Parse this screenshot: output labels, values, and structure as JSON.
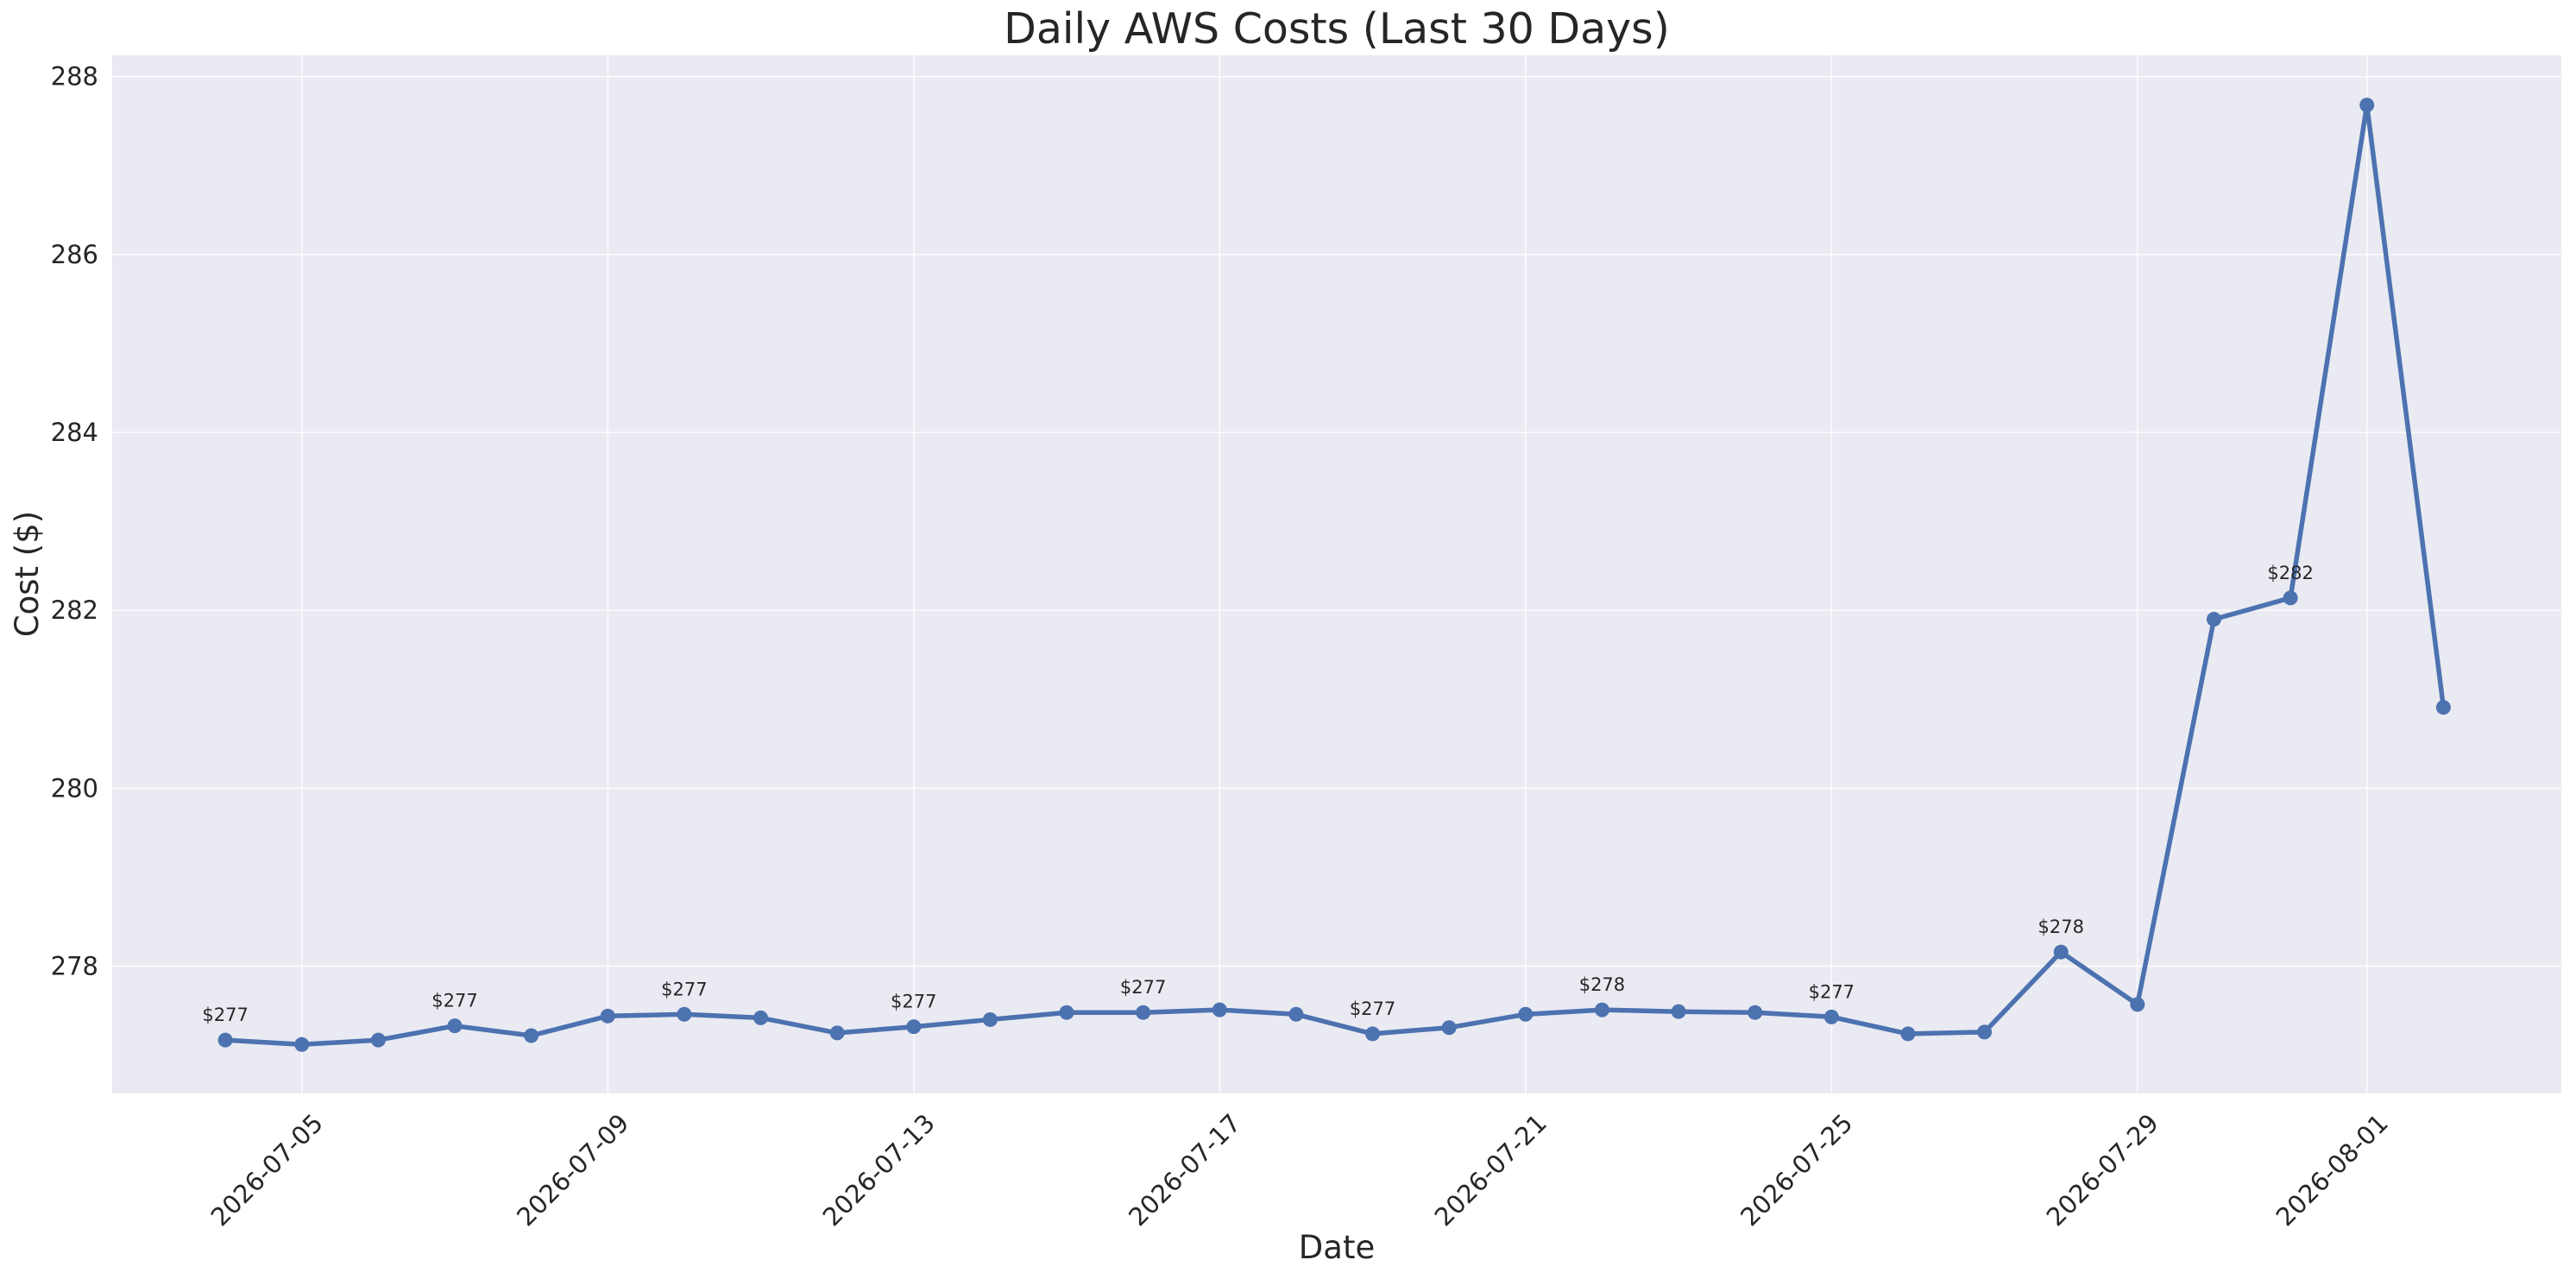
{
  "chart_data": {
    "type": "line",
    "title": "Daily AWS Costs (Last 30 Days)",
    "xlabel": "Date",
    "ylabel": "Cost ($)",
    "x": [
      "2026-07-04",
      "2026-07-05",
      "2026-07-06",
      "2026-07-07",
      "2026-07-08",
      "2026-07-09",
      "2026-07-10",
      "2026-07-11",
      "2026-07-12",
      "2026-07-13",
      "2026-07-14",
      "2026-07-15",
      "2026-07-16",
      "2026-07-17",
      "2026-07-18",
      "2026-07-19",
      "2026-07-20",
      "2026-07-21",
      "2026-07-22",
      "2026-07-23",
      "2026-07-24",
      "2026-07-25",
      "2026-07-26",
      "2026-07-27",
      "2026-07-28",
      "2026-07-29",
      "2026-07-30",
      "2026-07-31",
      "2026-08-01",
      "2026-08-02"
    ],
    "series": [
      {
        "values": [
          277.17,
          277.12,
          277.17,
          277.33,
          277.22,
          277.44,
          277.46,
          277.42,
          277.25,
          277.32,
          277.4,
          277.48,
          277.48,
          277.51,
          277.46,
          277.24,
          277.31,
          277.46,
          277.51,
          277.49,
          277.48,
          277.43,
          277.24,
          277.26,
          278.16,
          277.57,
          281.9,
          282.14,
          287.68,
          280.91
        ],
        "color": "#4c72b0"
      }
    ],
    "data_labels": [
      {
        "x": "2026-07-04",
        "text": "$277"
      },
      {
        "x": "2026-07-07",
        "text": "$277"
      },
      {
        "x": "2026-07-10",
        "text": "$277"
      },
      {
        "x": "2026-07-13",
        "text": "$277"
      },
      {
        "x": "2026-07-16",
        "text": "$277"
      },
      {
        "x": "2026-07-19",
        "text": "$277"
      },
      {
        "x": "2026-07-22",
        "text": "$278"
      },
      {
        "x": "2026-07-25",
        "text": "$277"
      },
      {
        "x": "2026-07-28",
        "text": "$278"
      },
      {
        "x": "2026-07-31",
        "text": "$282"
      }
    ],
    "x_ticks": [
      "2026-07-05",
      "2026-07-09",
      "2026-07-13",
      "2026-07-17",
      "2026-07-21",
      "2026-07-25",
      "2026-07-29",
      "2026-08-01"
    ],
    "y_ticks": [
      278,
      280,
      282,
      284,
      286,
      288
    ],
    "xlim": [
      "2026-07-02T12:30",
      "2026-08-03T13:00"
    ],
    "ylim": [
      276.57,
      288.24
    ],
    "grid": true,
    "style": {
      "plot_background": "#eaeaf2",
      "grid_color": "#ffffff",
      "line_color": "#4c72b0"
    }
  }
}
